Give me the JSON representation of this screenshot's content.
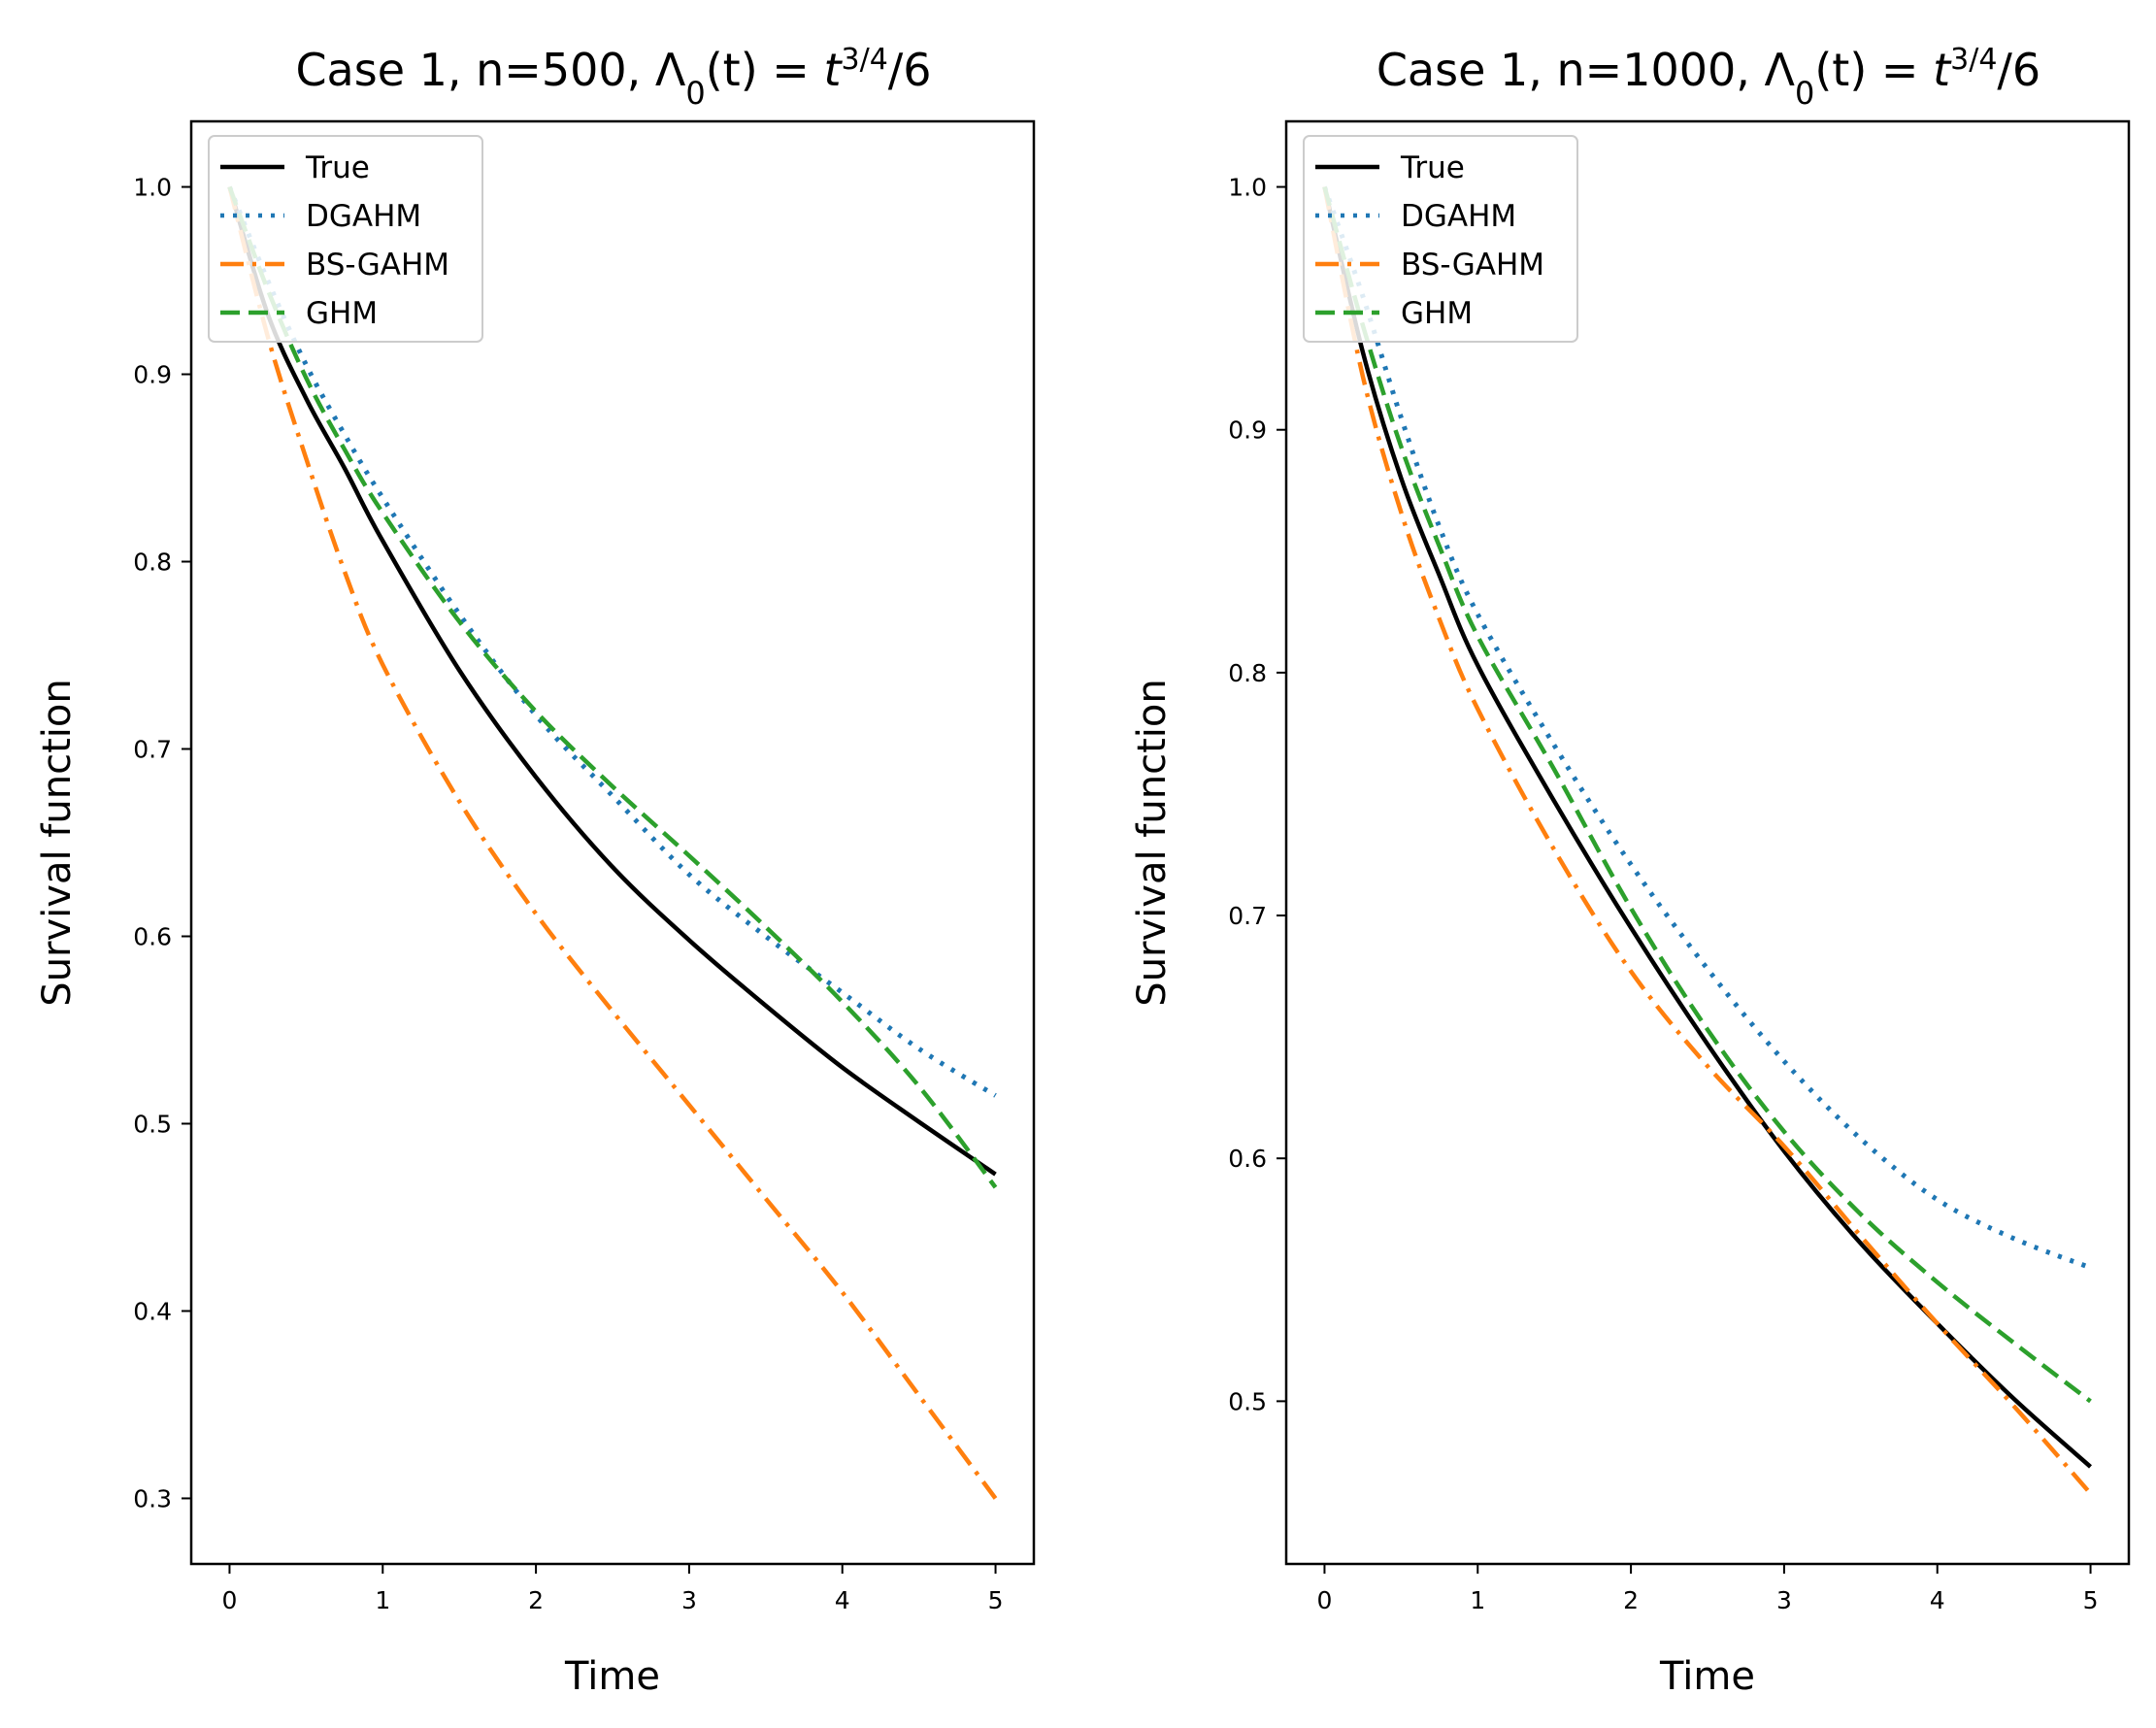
{
  "chart_data": [
    {
      "type": "line",
      "title": "Case 1, n=500, Λ₀(t) = t^{3/4}/6",
      "title_parts": {
        "main": "Case 1, n=500, ",
        "lambda": "Λ",
        "sub": "0",
        "arg": "(t)",
        "eq": " = ",
        "t": "t",
        "sup": "3/4",
        "tail": "/6"
      },
      "xlabel": "Time",
      "ylabel": "Survival function",
      "xlim": [
        -0.25,
        5.25
      ],
      "ylim": [
        0.265,
        1.035
      ],
      "xticks": [
        0,
        1,
        2,
        3,
        4,
        5
      ],
      "yticks": [
        0.3,
        0.4,
        0.5,
        0.6,
        0.7,
        0.8,
        0.9,
        1.0
      ],
      "xtick_labels": [
        "0",
        "1",
        "2",
        "3",
        "4",
        "5"
      ],
      "ytick_labels": [
        "0.3",
        "0.4",
        "0.5",
        "0.6",
        "0.7",
        "0.8",
        "0.9",
        "1.0"
      ],
      "legend_position": "top-left",
      "x": [
        0,
        0.25,
        0.5,
        0.75,
        1,
        1.5,
        2,
        2.5,
        3,
        3.5,
        4,
        4.5,
        5
      ],
      "series": [
        {
          "name": "True",
          "color": "#000000",
          "style": "solid",
          "values": [
            1.0,
            0.932,
            0.887,
            0.85,
            0.811,
            0.742,
            0.685,
            0.637,
            0.598,
            0.563,
            0.53,
            0.501,
            0.473
          ]
        },
        {
          "name": "DGAHM",
          "color": "#1f77b4",
          "style": "dotted",
          "values": [
            1.0,
            0.95,
            0.905,
            0.868,
            0.834,
            0.772,
            0.718,
            0.675,
            0.633,
            0.6,
            0.57,
            0.54,
            0.515
          ]
        },
        {
          "name": "BS-GAHM",
          "color": "#ff7f0e",
          "style": "dashdot",
          "values": [
            1.0,
            0.92,
            0.855,
            0.795,
            0.745,
            0.672,
            0.612,
            0.56,
            0.51,
            0.46,
            0.41,
            0.355,
            0.3
          ]
        },
        {
          "name": "GHM",
          "color": "#2ca02c",
          "style": "dashed",
          "values": [
            1.0,
            0.945,
            0.898,
            0.86,
            0.826,
            0.768,
            0.72,
            0.68,
            0.643,
            0.605,
            0.565,
            0.52,
            0.466
          ]
        }
      ]
    },
    {
      "type": "line",
      "title": "Case 1, n=1000, Λ₀(t) = t^{3/4}/6",
      "title_parts": {
        "main": "Case 1, n=1000, ",
        "lambda": "Λ",
        "sub": "0",
        "arg": "(t)",
        "eq": " = ",
        "t": "t",
        "sup": "3/4",
        "tail": "/6"
      },
      "xlabel": "Time",
      "ylabel": "Survival function",
      "xlim": [
        -0.25,
        5.25
      ],
      "ylim": [
        0.433,
        1.027
      ],
      "xticks": [
        0,
        1,
        2,
        3,
        4,
        5
      ],
      "yticks": [
        0.5,
        0.6,
        0.7,
        0.8,
        0.9,
        1.0
      ],
      "xtick_labels": [
        "0",
        "1",
        "2",
        "3",
        "4",
        "5"
      ],
      "ytick_labels": [
        "0.5",
        "0.6",
        "0.7",
        "0.8",
        "0.9",
        "1.0"
      ],
      "legend_position": "top-left",
      "x": [
        0,
        0.25,
        0.5,
        0.75,
        1,
        1.5,
        2,
        2.5,
        3,
        3.5,
        4,
        4.5,
        5
      ],
      "series": [
        {
          "name": "True",
          "color": "#000000",
          "style": "solid",
          "values": [
            1.0,
            0.932,
            0.88,
            0.84,
            0.803,
            0.747,
            0.695,
            0.647,
            0.603,
            0.565,
            0.532,
            0.501,
            0.473
          ]
        },
        {
          "name": "DGAHM",
          "color": "#1f77b4",
          "style": "dotted",
          "values": [
            1.0,
            0.955,
            0.905,
            0.86,
            0.824,
            0.77,
            0.721,
            0.678,
            0.64,
            0.608,
            0.583,
            0.567,
            0.555
          ]
        },
        {
          "name": "BS-GAHM",
          "color": "#ff7f0e",
          "style": "dashdot",
          "values": [
            1.0,
            0.922,
            0.866,
            0.822,
            0.785,
            0.727,
            0.677,
            0.638,
            0.605,
            0.568,
            0.532,
            0.498,
            0.462
          ]
        },
        {
          "name": "GHM",
          "color": "#2ca02c",
          "style": "dashed",
          "values": [
            1.0,
            0.943,
            0.893,
            0.852,
            0.815,
            0.76,
            0.703,
            0.653,
            0.611,
            0.577,
            0.549,
            0.524,
            0.5
          ]
        }
      ]
    }
  ]
}
